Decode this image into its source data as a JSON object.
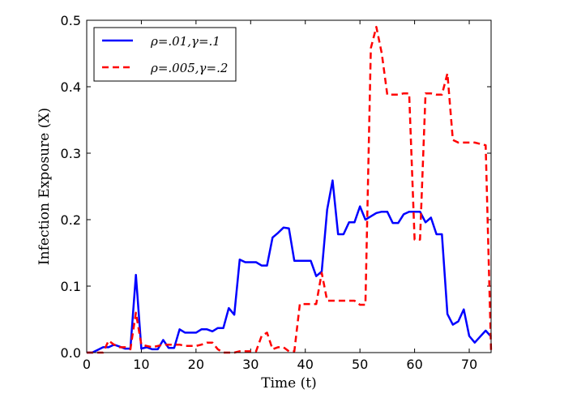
{
  "chart_data": {
    "type": "line",
    "title": "",
    "xlabel": "Time (t)",
    "ylabel": "Infection Exposure (X)",
    "xlim": [
      0,
      74
    ],
    "ylim": [
      0,
      0.5
    ],
    "xticks": [
      0,
      10,
      20,
      30,
      40,
      50,
      60,
      70
    ],
    "yticks": [
      0.0,
      0.1,
      0.2,
      0.3,
      0.4,
      0.5
    ],
    "xtick_labels": [
      "0",
      "10",
      "20",
      "30",
      "40",
      "50",
      "60",
      "70"
    ],
    "ytick_labels": [
      "0.0",
      "0.1",
      "0.2",
      "0.3",
      "0.4",
      "0.5"
    ],
    "grid": false,
    "legend_position": "top-left",
    "series": [
      {
        "name": "ρ=.01,γ=.1",
        "color": "#0000ff",
        "style": "solid",
        "x": [
          0,
          1,
          2,
          3,
          4,
          5,
          6,
          7,
          8,
          9,
          10,
          11,
          12,
          13,
          14,
          15,
          16,
          17,
          18,
          19,
          20,
          21,
          22,
          23,
          24,
          25,
          26,
          27,
          28,
          29,
          30,
          31,
          32,
          33,
          34,
          35,
          36,
          37,
          38,
          39,
          40,
          41,
          42,
          43,
          44,
          45,
          46,
          47,
          48,
          49,
          50,
          51,
          52,
          53,
          54,
          55,
          56,
          57,
          58,
          59,
          60,
          61,
          62,
          63,
          64,
          65,
          66,
          67,
          68,
          69,
          70,
          71,
          72,
          73,
          74
        ],
        "values": [
          0.0,
          0.0,
          0.004,
          0.008,
          0.008,
          0.012,
          0.009,
          0.006,
          0.006,
          0.117,
          0.006,
          0.008,
          0.005,
          0.005,
          0.019,
          0.007,
          0.007,
          0.035,
          0.03,
          0.03,
          0.03,
          0.035,
          0.035,
          0.032,
          0.037,
          0.037,
          0.067,
          0.057,
          0.14,
          0.136,
          0.136,
          0.136,
          0.131,
          0.131,
          0.173,
          0.18,
          0.188,
          0.187,
          0.138,
          0.138,
          0.138,
          0.138,
          0.115,
          0.122,
          0.215,
          0.259,
          0.178,
          0.178,
          0.196,
          0.196,
          0.22,
          0.2,
          0.205,
          0.21,
          0.212,
          0.212,
          0.195,
          0.195,
          0.208,
          0.212,
          0.212,
          0.212,
          0.196,
          0.203,
          0.178,
          0.178,
          0.058,
          0.042,
          0.047,
          0.065,
          0.025,
          0.015,
          0.024,
          0.033,
          0.024
        ]
      },
      {
        "name": "ρ=.005,γ=.2",
        "color": "#ff0000",
        "style": "dashed",
        "x": [
          0,
          1,
          2,
          3,
          4,
          5,
          6,
          7,
          8,
          9,
          10,
          11,
          12,
          13,
          14,
          15,
          16,
          17,
          18,
          19,
          20,
          21,
          22,
          23,
          24,
          25,
          26,
          27,
          28,
          29,
          30,
          31,
          32,
          33,
          34,
          35,
          36,
          37,
          38,
          39,
          40,
          41,
          42,
          43,
          44,
          45,
          46,
          47,
          48,
          49,
          50,
          51,
          52,
          53,
          54,
          55,
          56,
          57,
          58,
          59,
          60,
          61,
          62,
          63,
          64,
          65,
          66,
          67,
          68,
          69,
          70,
          71,
          72,
          73,
          74
        ],
        "values": [
          0.0,
          0.0,
          0.0,
          0.0,
          0.018,
          0.012,
          0.008,
          0.008,
          0.005,
          0.06,
          0.012,
          0.01,
          0.008,
          0.01,
          0.012,
          0.012,
          0.012,
          0.012,
          0.01,
          0.01,
          0.01,
          0.012,
          0.015,
          0.015,
          0.005,
          0.0,
          0.0,
          0.0,
          0.002,
          0.002,
          0.002,
          0.002,
          0.025,
          0.03,
          0.005,
          0.008,
          0.008,
          0.002,
          0.002,
          0.073,
          0.073,
          0.073,
          0.073,
          0.12,
          0.078,
          0.078,
          0.078,
          0.078,
          0.078,
          0.078,
          0.072,
          0.072,
          0.458,
          0.49,
          0.45,
          0.388,
          0.388,
          0.388,
          0.39,
          0.39,
          0.17,
          0.17,
          0.39,
          0.39,
          0.388,
          0.388,
          0.42,
          0.32,
          0.316,
          0.316,
          0.316,
          0.316,
          0.314,
          0.312,
          0.0
        ]
      }
    ]
  }
}
